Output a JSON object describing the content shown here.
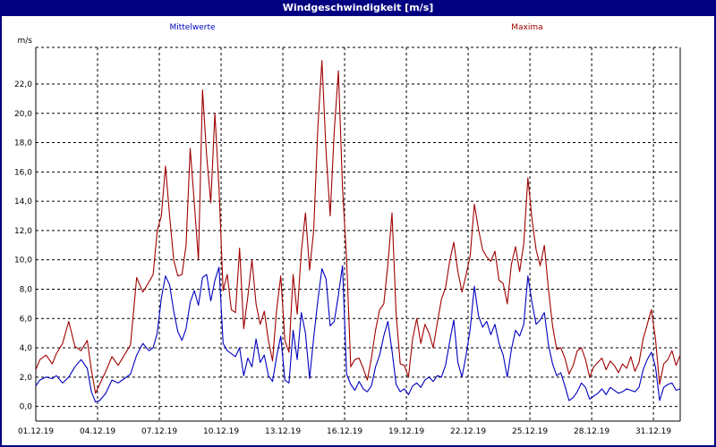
{
  "window": {
    "title": "Windgeschwindigkeit [m/s]"
  },
  "colors": {
    "title_bar": "#000080",
    "mean_series": "#0000c0",
    "max_series": "#a00000",
    "grid": "#000000"
  },
  "chart_data": {
    "type": "line",
    "title": "Windgeschwindigkeit [m/s]",
    "ylabel": "m/s",
    "xlabel": "",
    "ylim": [
      -1,
      24.5
    ],
    "y_ticks": [
      "0,0",
      "2,0",
      "4,0",
      "6,0",
      "8,0",
      "10,0",
      "12,0",
      "14,0",
      "16,0",
      "18,0",
      "20,0",
      "22,0"
    ],
    "x_tick_labels": [
      "01.12.19",
      "04.12.19",
      "07.12.19",
      "10.12.19",
      "13.12.19",
      "16.12.19",
      "19.12.19",
      "22.12.19",
      "25.12.19",
      "28.12.19",
      "31.12.19"
    ],
    "x_range_days": [
      1,
      32.3
    ],
    "grid": true,
    "series": [
      {
        "name": "Mittelwerte",
        "color": "#0000c0",
        "points": [
          [
            1.0,
            1.4
          ],
          [
            1.2,
            1.8
          ],
          [
            1.5,
            2.0
          ],
          [
            1.8,
            1.9
          ],
          [
            2.0,
            2.1
          ],
          [
            2.3,
            1.6
          ],
          [
            2.6,
            2.0
          ],
          [
            2.9,
            2.7
          ],
          [
            3.2,
            3.2
          ],
          [
            3.5,
            2.6
          ],
          [
            3.7,
            1.0
          ],
          [
            3.9,
            0.3
          ],
          [
            4.1,
            0.4
          ],
          [
            4.4,
            0.9
          ],
          [
            4.7,
            1.8
          ],
          [
            5.0,
            1.6
          ],
          [
            5.3,
            1.9
          ],
          [
            5.6,
            2.2
          ],
          [
            5.9,
            3.5
          ],
          [
            6.2,
            4.3
          ],
          [
            6.5,
            3.8
          ],
          [
            6.7,
            4.0
          ],
          [
            6.9,
            5.0
          ],
          [
            7.1,
            7.4
          ],
          [
            7.3,
            8.9
          ],
          [
            7.5,
            8.3
          ],
          [
            7.7,
            6.5
          ],
          [
            7.9,
            5.1
          ],
          [
            8.1,
            4.5
          ],
          [
            8.3,
            5.3
          ],
          [
            8.5,
            7.1
          ],
          [
            8.7,
            7.9
          ],
          [
            8.9,
            6.9
          ],
          [
            9.1,
            8.8
          ],
          [
            9.3,
            9.0
          ],
          [
            9.5,
            7.2
          ],
          [
            9.7,
            8.6
          ],
          [
            9.9,
            9.5
          ],
          [
            10.1,
            4.3
          ],
          [
            10.3,
            3.8
          ],
          [
            10.5,
            3.6
          ],
          [
            10.7,
            3.4
          ],
          [
            10.9,
            4.0
          ],
          [
            11.1,
            2.1
          ],
          [
            11.3,
            3.3
          ],
          [
            11.5,
            2.7
          ],
          [
            11.7,
            4.6
          ],
          [
            11.9,
            3.0
          ],
          [
            12.1,
            3.5
          ],
          [
            12.3,
            2.1
          ],
          [
            12.5,
            1.7
          ],
          [
            12.7,
            3.4
          ],
          [
            12.9,
            4.8
          ],
          [
            13.1,
            1.8
          ],
          [
            13.3,
            1.6
          ],
          [
            13.5,
            5.2
          ],
          [
            13.7,
            3.2
          ],
          [
            13.9,
            6.4
          ],
          [
            14.1,
            5.0
          ],
          [
            14.3,
            1.9
          ],
          [
            14.5,
            4.7
          ],
          [
            14.7,
            7.2
          ],
          [
            14.9,
            9.4
          ],
          [
            15.1,
            8.7
          ],
          [
            15.3,
            5.5
          ],
          [
            15.5,
            5.8
          ],
          [
            15.7,
            7.6
          ],
          [
            15.9,
            9.6
          ],
          [
            16.1,
            2.2
          ],
          [
            16.3,
            1.5
          ],
          [
            16.5,
            1.1
          ],
          [
            16.7,
            1.7
          ],
          [
            16.9,
            1.2
          ],
          [
            17.1,
            1.0
          ],
          [
            17.3,
            1.4
          ],
          [
            17.5,
            2.7
          ],
          [
            17.7,
            3.5
          ],
          [
            17.9,
            4.8
          ],
          [
            18.1,
            5.8
          ],
          [
            18.3,
            3.8
          ],
          [
            18.5,
            1.5
          ],
          [
            18.7,
            1.0
          ],
          [
            18.9,
            1.2
          ],
          [
            19.1,
            0.8
          ],
          [
            19.3,
            1.4
          ],
          [
            19.5,
            1.6
          ],
          [
            19.7,
            1.3
          ],
          [
            19.9,
            1.8
          ],
          [
            20.1,
            2.0
          ],
          [
            20.3,
            1.7
          ],
          [
            20.5,
            2.1
          ],
          [
            20.7,
            2.0
          ],
          [
            20.9,
            2.8
          ],
          [
            21.1,
            4.4
          ],
          [
            21.3,
            5.9
          ],
          [
            21.5,
            3.0
          ],
          [
            21.7,
            2.0
          ],
          [
            21.9,
            3.5
          ],
          [
            22.1,
            5.3
          ],
          [
            22.3,
            8.2
          ],
          [
            22.5,
            6.2
          ],
          [
            22.7,
            5.4
          ],
          [
            22.9,
            5.8
          ],
          [
            23.1,
            4.9
          ],
          [
            23.3,
            5.6
          ],
          [
            23.5,
            4.3
          ],
          [
            23.7,
            3.5
          ],
          [
            23.9,
            2.0
          ],
          [
            24.1,
            3.9
          ],
          [
            24.3,
            5.2
          ],
          [
            24.5,
            4.8
          ],
          [
            24.7,
            5.6
          ],
          [
            24.9,
            8.9
          ],
          [
            25.1,
            7.1
          ],
          [
            25.3,
            5.6
          ],
          [
            25.5,
            5.9
          ],
          [
            25.7,
            6.4
          ],
          [
            25.9,
            4.2
          ],
          [
            26.1,
            2.9
          ],
          [
            26.3,
            2.1
          ],
          [
            26.5,
            2.3
          ],
          [
            26.7,
            1.4
          ],
          [
            26.9,
            0.4
          ],
          [
            27.1,
            0.6
          ],
          [
            27.3,
            1.0
          ],
          [
            27.5,
            1.6
          ],
          [
            27.7,
            1.3
          ],
          [
            27.9,
            0.5
          ],
          [
            28.1,
            0.7
          ],
          [
            28.3,
            0.9
          ],
          [
            28.5,
            1.2
          ],
          [
            28.7,
            0.8
          ],
          [
            28.9,
            1.3
          ],
          [
            29.1,
            1.1
          ],
          [
            29.3,
            0.9
          ],
          [
            29.5,
            1.0
          ],
          [
            29.7,
            1.2
          ],
          [
            29.9,
            1.1
          ],
          [
            30.1,
            1.0
          ],
          [
            30.3,
            1.3
          ],
          [
            30.5,
            2.5
          ],
          [
            30.7,
            3.2
          ],
          [
            30.9,
            3.7
          ],
          [
            31.1,
            2.7
          ],
          [
            31.3,
            0.4
          ],
          [
            31.5,
            1.3
          ],
          [
            31.7,
            1.5
          ],
          [
            31.9,
            1.6
          ],
          [
            32.1,
            1.1
          ],
          [
            32.3,
            1.2
          ]
        ]
      },
      {
        "name": "Maxima",
        "color": "#a00000",
        "points": [
          [
            1.0,
            2.5
          ],
          [
            1.2,
            3.2
          ],
          [
            1.5,
            3.5
          ],
          [
            1.8,
            2.9
          ],
          [
            2.0,
            3.6
          ],
          [
            2.3,
            4.3
          ],
          [
            2.6,
            5.8
          ],
          [
            2.9,
            4.1
          ],
          [
            3.2,
            3.8
          ],
          [
            3.5,
            4.5
          ],
          [
            3.7,
            2.5
          ],
          [
            3.9,
            0.9
          ],
          [
            4.1,
            1.5
          ],
          [
            4.4,
            2.4
          ],
          [
            4.7,
            3.4
          ],
          [
            5.0,
            2.8
          ],
          [
            5.3,
            3.5
          ],
          [
            5.6,
            4.2
          ],
          [
            5.9,
            8.8
          ],
          [
            6.2,
            7.8
          ],
          [
            6.5,
            8.5
          ],
          [
            6.7,
            9.0
          ],
          [
            6.9,
            12.0
          ],
          [
            7.1,
            13.0
          ],
          [
            7.3,
            16.4
          ],
          [
            7.5,
            13.0
          ],
          [
            7.7,
            10.0
          ],
          [
            7.9,
            8.9
          ],
          [
            8.1,
            9.0
          ],
          [
            8.3,
            11.0
          ],
          [
            8.5,
            17.6
          ],
          [
            8.7,
            13.9
          ],
          [
            8.9,
            10.0
          ],
          [
            9.1,
            21.6
          ],
          [
            9.3,
            17.1
          ],
          [
            9.5,
            13.9
          ],
          [
            9.7,
            20.0
          ],
          [
            9.9,
            14.9
          ],
          [
            10.1,
            7.9
          ],
          [
            10.3,
            9.0
          ],
          [
            10.5,
            6.6
          ],
          [
            10.7,
            6.4
          ],
          [
            10.9,
            10.8
          ],
          [
            11.1,
            5.3
          ],
          [
            11.3,
            7.5
          ],
          [
            11.5,
            10.0
          ],
          [
            11.7,
            7.0
          ],
          [
            11.9,
            5.6
          ],
          [
            12.1,
            6.5
          ],
          [
            12.3,
            4.5
          ],
          [
            12.5,
            3.1
          ],
          [
            12.7,
            6.6
          ],
          [
            12.9,
            8.9
          ],
          [
            13.1,
            4.5
          ],
          [
            13.3,
            3.7
          ],
          [
            13.5,
            9.0
          ],
          [
            13.7,
            6.3
          ],
          [
            13.9,
            10.6
          ],
          [
            14.1,
            13.2
          ],
          [
            14.3,
            9.3
          ],
          [
            14.5,
            12.0
          ],
          [
            14.7,
            19.0
          ],
          [
            14.9,
            23.6
          ],
          [
            15.1,
            17.4
          ],
          [
            15.3,
            13.0
          ],
          [
            15.5,
            18.8
          ],
          [
            15.7,
            22.9
          ],
          [
            15.9,
            14.9
          ],
          [
            16.1,
            10.0
          ],
          [
            16.3,
            2.7
          ],
          [
            16.5,
            3.2
          ],
          [
            16.7,
            3.3
          ],
          [
            16.9,
            2.6
          ],
          [
            17.1,
            1.8
          ],
          [
            17.3,
            3.3
          ],
          [
            17.5,
            5.2
          ],
          [
            17.7,
            6.6
          ],
          [
            17.9,
            7.0
          ],
          [
            18.1,
            9.7
          ],
          [
            18.3,
            13.2
          ],
          [
            18.5,
            6.3
          ],
          [
            18.7,
            2.9
          ],
          [
            18.9,
            2.8
          ],
          [
            19.1,
            2.0
          ],
          [
            19.3,
            4.6
          ],
          [
            19.5,
            6.0
          ],
          [
            19.7,
            4.3
          ],
          [
            19.9,
            5.6
          ],
          [
            20.1,
            5.0
          ],
          [
            20.3,
            4.0
          ],
          [
            20.5,
            5.7
          ],
          [
            20.7,
            7.3
          ],
          [
            20.9,
            8.1
          ],
          [
            21.1,
            9.9
          ],
          [
            21.3,
            11.2
          ],
          [
            21.5,
            9.2
          ],
          [
            21.7,
            7.8
          ],
          [
            21.9,
            9.0
          ],
          [
            22.1,
            10.3
          ],
          [
            22.3,
            13.8
          ],
          [
            22.5,
            12.1
          ],
          [
            22.7,
            10.7
          ],
          [
            22.9,
            10.2
          ],
          [
            23.1,
            9.9
          ],
          [
            23.3,
            10.6
          ],
          [
            23.5,
            8.6
          ],
          [
            23.7,
            8.4
          ],
          [
            23.9,
            7.0
          ],
          [
            24.1,
            9.7
          ],
          [
            24.3,
            10.9
          ],
          [
            24.5,
            9.2
          ],
          [
            24.7,
            11.1
          ],
          [
            24.9,
            15.6
          ],
          [
            25.1,
            12.8
          ],
          [
            25.3,
            10.7
          ],
          [
            25.5,
            9.6
          ],
          [
            25.7,
            11.0
          ],
          [
            25.9,
            8.0
          ],
          [
            26.1,
            5.5
          ],
          [
            26.3,
            3.9
          ],
          [
            26.5,
            4.0
          ],
          [
            26.7,
            3.3
          ],
          [
            26.9,
            2.2
          ],
          [
            27.1,
            2.8
          ],
          [
            27.3,
            3.8
          ],
          [
            27.5,
            4.0
          ],
          [
            27.7,
            3.2
          ],
          [
            27.9,
            2.0
          ],
          [
            28.1,
            2.7
          ],
          [
            28.3,
            3.0
          ],
          [
            28.5,
            3.3
          ],
          [
            28.7,
            2.5
          ],
          [
            28.9,
            3.1
          ],
          [
            29.1,
            2.8
          ],
          [
            29.3,
            2.3
          ],
          [
            29.5,
            2.9
          ],
          [
            29.7,
            2.6
          ],
          [
            29.9,
            3.4
          ],
          [
            30.1,
            2.4
          ],
          [
            30.3,
            3.0
          ],
          [
            30.5,
            4.6
          ],
          [
            30.7,
            5.6
          ],
          [
            30.9,
            6.6
          ],
          [
            31.1,
            4.6
          ],
          [
            31.3,
            1.5
          ],
          [
            31.5,
            2.9
          ],
          [
            31.7,
            3.2
          ],
          [
            31.9,
            3.8
          ],
          [
            32.1,
            2.8
          ],
          [
            32.3,
            3.5
          ]
        ]
      }
    ]
  }
}
